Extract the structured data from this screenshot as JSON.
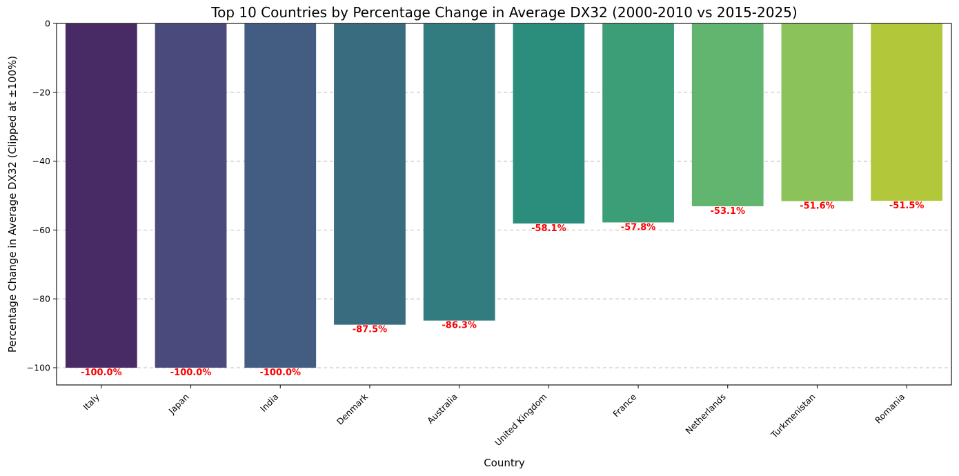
{
  "chart_data": {
    "type": "bar",
    "title": "Top 10 Countries by Percentage Change in Average DX32 (2000-2010 vs 2015-2025)",
    "xlabel": "Country",
    "ylabel": "Percentage Change in Average DX32 (Clipped at ±100%)",
    "categories": [
      "Italy",
      "Japan",
      "India",
      "Denmark",
      "Australia",
      "United Kingdom",
      "France",
      "Netherlands",
      "Turkmenistan",
      "Romania"
    ],
    "values": [
      -100.0,
      -100.0,
      -100.0,
      -87.5,
      -86.3,
      -58.1,
      -57.8,
      -53.1,
      -51.6,
      -51.5
    ],
    "value_labels": [
      "-100.0%",
      "-100.0%",
      "-100.0%",
      "-87.5%",
      "-86.3%",
      "-58.1%",
      "-57.8%",
      "-53.1%",
      "-51.6%",
      "-51.5%"
    ],
    "colors": [
      "#482b65",
      "#4a4a7d",
      "#435c81",
      "#3a6c80",
      "#327c80",
      "#2b8e7c",
      "#3c9e77",
      "#62b56e",
      "#8bc25a",
      "#b2c73a"
    ],
    "label_color": "#ff0000",
    "ylim": [
      -105,
      0
    ],
    "yticks": [
      0,
      -20,
      -40,
      -60,
      -80,
      -100
    ],
    "ytick_labels": [
      "0",
      "−20",
      "−40",
      "−60",
      "−80",
      "−100"
    ],
    "grid": "y-dashed",
    "legend": "none"
  }
}
